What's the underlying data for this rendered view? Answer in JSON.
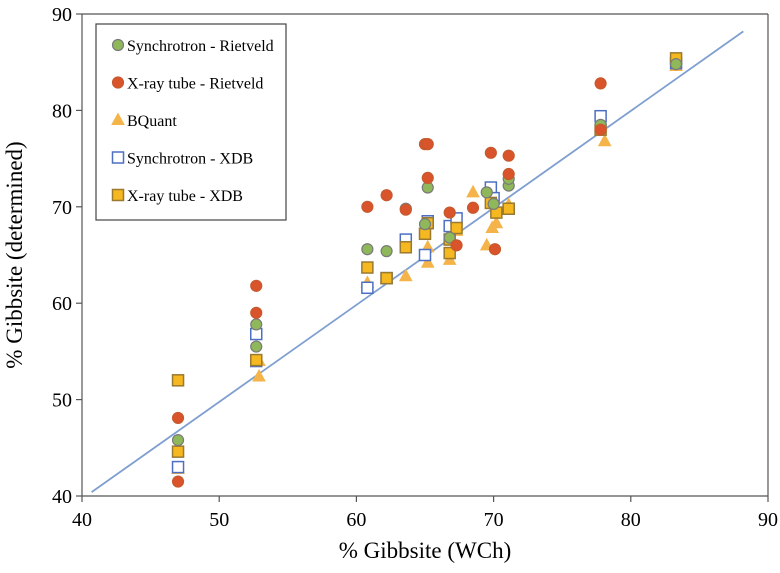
{
  "chart_data": {
    "type": "scatter",
    "title": "",
    "xlabel": "% Gibbsite (WCh)",
    "ylabel": "% Gibbsite (determined)",
    "xlim": [
      40,
      90
    ],
    "ylim": [
      40,
      90
    ],
    "xticks": [
      "40",
      "50",
      "60",
      "70",
      "80",
      "90"
    ],
    "yticks": [
      "40",
      "50",
      "60",
      "70",
      "80",
      "90"
    ],
    "grid": false,
    "legend_position": "top-left",
    "reference_line": {
      "from": [
        40.7,
        40.4
      ],
      "to": [
        88.2,
        88.2
      ],
      "color": "#7f9fd0"
    },
    "series": [
      {
        "name": "Synchrotron - Rietveld",
        "marker": "circle",
        "fill": "#8fb85a",
        "stroke": "#7a7a7a",
        "points": [
          [
            47,
            45.8
          ],
          [
            52.7,
            57.8
          ],
          [
            52.7,
            55.5
          ],
          [
            60.8,
            65.6
          ],
          [
            62.2,
            65.4
          ],
          [
            63.6,
            69.8
          ],
          [
            65,
            68.2
          ],
          [
            65.2,
            72
          ],
          [
            66.8,
            66.8
          ],
          [
            69.5,
            71.5
          ],
          [
            70,
            70.3
          ],
          [
            71.1,
            72.2
          ],
          [
            71.1,
            72.9
          ],
          [
            77.8,
            78.5
          ],
          [
            83.3,
            84.8
          ]
        ]
      },
      {
        "name": "X-ray tube - Rietveld",
        "marker": "circle",
        "fill": "#d9532b",
        "stroke": "#c65a2e",
        "points": [
          [
            47,
            41.5
          ],
          [
            47,
            48.1
          ],
          [
            52.7,
            61.8
          ],
          [
            52.7,
            59
          ],
          [
            60.8,
            70
          ],
          [
            62.2,
            71.2
          ],
          [
            63.6,
            69.7
          ],
          [
            65,
            76.5
          ],
          [
            65.2,
            76.5
          ],
          [
            65.2,
            73
          ],
          [
            66.8,
            69.4
          ],
          [
            67.3,
            66
          ],
          [
            68.5,
            69.9
          ],
          [
            69.8,
            75.6
          ],
          [
            70.1,
            65.6
          ],
          [
            71.1,
            75.3
          ],
          [
            71.1,
            73.4
          ],
          [
            77.8,
            82.8
          ],
          [
            77.8,
            78
          ]
        ]
      },
      {
        "name": "BQuant",
        "marker": "triangle",
        "fill": "#f5b44a",
        "stroke": "#f5b44a",
        "points": [
          [
            47,
            42.8
          ],
          [
            52.9,
            52.4
          ],
          [
            52.9,
            54
          ],
          [
            60.8,
            62.1
          ],
          [
            62.2,
            62.5
          ],
          [
            63.6,
            62.8
          ],
          [
            65.2,
            64.2
          ],
          [
            65.2,
            65.8
          ],
          [
            66.8,
            64.5
          ],
          [
            67.3,
            67.5
          ],
          [
            68.5,
            71.5
          ],
          [
            69.5,
            66
          ],
          [
            69.9,
            67.8
          ],
          [
            70.2,
            68.3
          ],
          [
            71.1,
            70.2
          ],
          [
            78.1,
            76.8
          ],
          [
            83.3,
            84.6
          ]
        ]
      },
      {
        "name": "Synchrotron - XDB",
        "marker": "square",
        "fill": "#ffffff",
        "stroke": "#4d6fc2",
        "points": [
          [
            47,
            43
          ],
          [
            52.7,
            56.8
          ],
          [
            52.7,
            54
          ],
          [
            60.8,
            61.6
          ],
          [
            62.2,
            62.6
          ],
          [
            63.6,
            66.6
          ],
          [
            65,
            65
          ],
          [
            65.2,
            68.5
          ],
          [
            66.8,
            68
          ],
          [
            67.3,
            68.8
          ],
          [
            69.8,
            72
          ],
          [
            70,
            70.9
          ],
          [
            71.1,
            69.8
          ],
          [
            77.8,
            79.4
          ],
          [
            83.3,
            84.9
          ]
        ]
      },
      {
        "name": "X-ray tube - XDB",
        "marker": "square",
        "fill": "#f5b820",
        "stroke": "#9a7a30",
        "points": [
          [
            47,
            52
          ],
          [
            47,
            44.6
          ],
          [
            52.7,
            54.1
          ],
          [
            60.8,
            63.7
          ],
          [
            62.2,
            62.6
          ],
          [
            63.6,
            65.8
          ],
          [
            65,
            67.2
          ],
          [
            65.2,
            68.3
          ],
          [
            66.8,
            65.2
          ],
          [
            66.8,
            66.6
          ],
          [
            67.3,
            67.8
          ],
          [
            69.8,
            70.4
          ],
          [
            70.2,
            69.4
          ],
          [
            71.1,
            69.8
          ],
          [
            77.8,
            78
          ],
          [
            83.3,
            85.4
          ]
        ]
      }
    ]
  }
}
